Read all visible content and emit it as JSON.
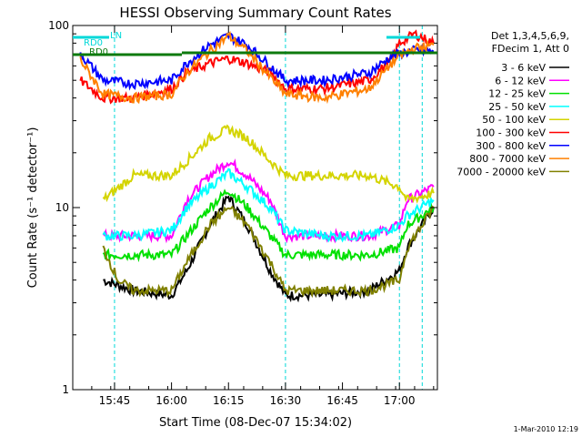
{
  "chart_data": {
    "type": "line",
    "title": "HESSI Observing Summary Count Rates",
    "xlabel": "Start Time (08-Dec-07 15:34:02)",
    "ylabel": "Count Rate (s⁻¹ detector⁻¹)",
    "yscale": "log",
    "ylim": [
      1,
      100
    ],
    "xlim_minutes": [
      0,
      60
    ],
    "x_tick_labels": [
      {
        "label": "15:45",
        "t": 11
      },
      {
        "label": "16:00",
        "t": 26
      },
      {
        "label": "16:15",
        "t": 41
      },
      {
        "label": "16:30",
        "t": 56
      },
      {
        "label": "16:45",
        "t": 71
      },
      {
        "label": "17:00",
        "t": 86
      }
    ],
    "y_tick_labels": [
      {
        "label": "1",
        "v": 1
      },
      {
        "label": "10",
        "v": 10
      },
      {
        "label": "100",
        "v": 100
      }
    ],
    "legend_header": [
      "Det 1,3,4,5,6,9,",
      "FDecim 1, Att 0"
    ],
    "legend_placement": "right",
    "flags": [
      {
        "label": "RD0",
        "color": "#00d8d8"
      },
      {
        "label": "LN",
        "color": "#00d8d8"
      },
      {
        "label": "RD0",
        "color": "#0d7a0d"
      }
    ],
    "series": [
      {
        "name": "3 - 6 keV",
        "color": "#000000",
        "points": [
          [
            8,
            4
          ],
          [
            16,
            3.5
          ],
          [
            26,
            3.3
          ],
          [
            30,
            4.5
          ],
          [
            36,
            8
          ],
          [
            41,
            11.5
          ],
          [
            46,
            8
          ],
          [
            52,
            4.5
          ],
          [
            56,
            3.3
          ],
          [
            66,
            3.3
          ],
          [
            78,
            3.5
          ],
          [
            86,
            4.5
          ],
          [
            88,
            6
          ],
          [
            95,
            10
          ]
        ]
      },
      {
        "name": "6 - 12 keV",
        "color": "#ff00ff",
        "points": [
          [
            8,
            7
          ],
          [
            16,
            7
          ],
          [
            26,
            7
          ],
          [
            30,
            11
          ],
          [
            36,
            15
          ],
          [
            41,
            18
          ],
          [
            46,
            15
          ],
          [
            52,
            11
          ],
          [
            56,
            7
          ],
          [
            66,
            7
          ],
          [
            78,
            7
          ],
          [
            86,
            8
          ],
          [
            88,
            11
          ],
          [
            95,
            13
          ]
        ]
      },
      {
        "name": "12 - 25 keV",
        "color": "#00e000",
        "points": [
          [
            8,
            5.5
          ],
          [
            16,
            5.5
          ],
          [
            26,
            5.5
          ],
          [
            30,
            7
          ],
          [
            36,
            10
          ],
          [
            41,
            12.5
          ],
          [
            46,
            10
          ],
          [
            52,
            7
          ],
          [
            56,
            5.5
          ],
          [
            66,
            5.5
          ],
          [
            78,
            5.5
          ],
          [
            86,
            6
          ],
          [
            88,
            8
          ],
          [
            95,
            10
          ]
        ]
      },
      {
        "name": "25 - 50 keV",
        "color": "#00ffff",
        "points": [
          [
            8,
            7
          ],
          [
            16,
            7
          ],
          [
            26,
            7.5
          ],
          [
            30,
            10
          ],
          [
            36,
            13
          ],
          [
            41,
            15.5
          ],
          [
            46,
            13
          ],
          [
            52,
            10
          ],
          [
            56,
            7.5
          ],
          [
            66,
            7
          ],
          [
            78,
            7
          ],
          [
            86,
            8
          ],
          [
            88,
            9
          ],
          [
            95,
            11
          ]
        ]
      },
      {
        "name": "50 - 100 keV",
        "color": "#d4d400",
        "points": [
          [
            8,
            11
          ],
          [
            16,
            15
          ],
          [
            26,
            15
          ],
          [
            30,
            18
          ],
          [
            36,
            24
          ],
          [
            41,
            27
          ],
          [
            46,
            24
          ],
          [
            52,
            18
          ],
          [
            56,
            15
          ],
          [
            66,
            15
          ],
          [
            78,
            15
          ],
          [
            86,
            13
          ],
          [
            88,
            11
          ],
          [
            95,
            12
          ]
        ]
      },
      {
        "name": "100 - 300 keV",
        "color": "#ff0000",
        "points": [
          [
            2,
            50
          ],
          [
            8,
            40
          ],
          [
            16,
            40
          ],
          [
            26,
            45
          ],
          [
            30,
            55
          ],
          [
            36,
            62
          ],
          [
            41,
            66
          ],
          [
            46,
            62
          ],
          [
            52,
            55
          ],
          [
            56,
            45
          ],
          [
            66,
            45
          ],
          [
            78,
            50
          ],
          [
            84,
            65
          ],
          [
            86,
            80
          ],
          [
            88,
            85
          ],
          [
            90,
            90
          ],
          [
            95,
            80
          ]
        ]
      },
      {
        "name": "300 - 800 keV",
        "color": "#0000ff",
        "points": [
          [
            2,
            70
          ],
          [
            8,
            50
          ],
          [
            16,
            48
          ],
          [
            26,
            50
          ],
          [
            30,
            62
          ],
          [
            36,
            78
          ],
          [
            41,
            88
          ],
          [
            46,
            78
          ],
          [
            52,
            60
          ],
          [
            56,
            50
          ],
          [
            66,
            50
          ],
          [
            78,
            55
          ],
          [
            84,
            68
          ],
          [
            86,
            70
          ],
          [
            90,
            73
          ],
          [
            95,
            72
          ]
        ]
      },
      {
        "name": "800 - 7000 keV",
        "color": "#ff8000",
        "points": [
          [
            2,
            65
          ],
          [
            8,
            42
          ],
          [
            16,
            40
          ],
          [
            26,
            42
          ],
          [
            30,
            55
          ],
          [
            36,
            72
          ],
          [
            41,
            88
          ],
          [
            46,
            72
          ],
          [
            52,
            52
          ],
          [
            56,
            42
          ],
          [
            66,
            40
          ],
          [
            78,
            45
          ],
          [
            84,
            62
          ],
          [
            86,
            68
          ],
          [
            90,
            75
          ],
          [
            95,
            78
          ]
        ]
      },
      {
        "name": "7000 - 20000 keV",
        "color": "#808000",
        "points": [
          [
            8,
            6
          ],
          [
            12,
            4
          ],
          [
            16,
            3.5
          ],
          [
            26,
            3.5
          ],
          [
            30,
            5
          ],
          [
            36,
            8
          ],
          [
            41,
            10
          ],
          [
            46,
            8
          ],
          [
            52,
            5
          ],
          [
            56,
            3.5
          ],
          [
            66,
            3.5
          ],
          [
            78,
            3.5
          ],
          [
            86,
            4
          ],
          [
            88,
            6
          ],
          [
            95,
            10
          ]
        ]
      }
    ],
    "footer_date": "1-Mar-2010 12:19"
  }
}
